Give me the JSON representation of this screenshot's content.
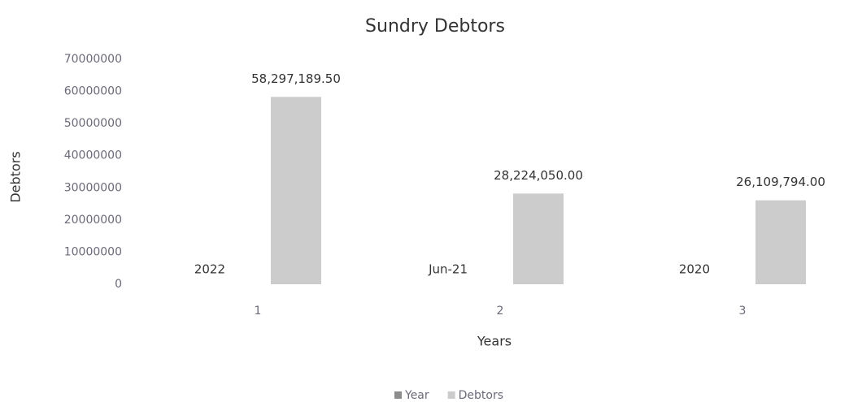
{
  "chart_data": {
    "type": "bar",
    "title": "Sundry Debtors",
    "x_label": "Years",
    "y_label": "Debtors",
    "categories": [
      "1",
      "2",
      "3"
    ],
    "series": [
      {
        "name": "Year",
        "color": "#8c8c8c",
        "values": [
          2022,
          null,
          2020
        ],
        "value_labels": [
          "2022",
          "Jun-21",
          "2020"
        ]
      },
      {
        "name": "Debtors",
        "color": "#cccccc",
        "values": [
          58297189.5,
          28224050,
          26109794
        ],
        "value_labels": [
          "58,297,189.50",
          "28,224,050.00",
          "26,109,794.00"
        ]
      }
    ],
    "ylim": [
      0,
      70000000
    ],
    "yticks": [
      0,
      10000000,
      20000000,
      30000000,
      40000000,
      50000000,
      60000000,
      70000000
    ],
    "grid": false,
    "legend": "bottom"
  }
}
